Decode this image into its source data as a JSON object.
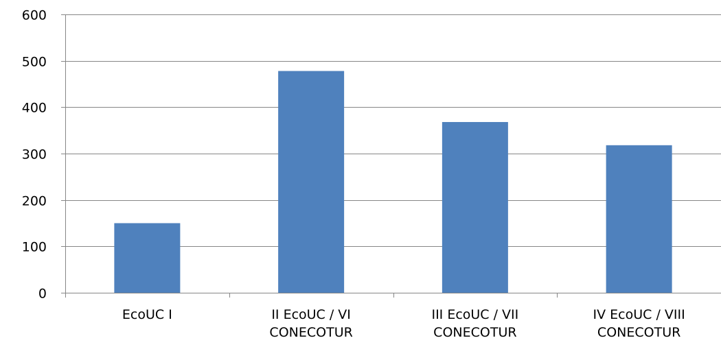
{
  "chart_data": {
    "type": "bar",
    "categories": [
      [
        "EcoUC I"
      ],
      [
        "II EcoUC / VI",
        "CONECOTUR"
      ],
      [
        "III EcoUC  / VII",
        "CONECOTUR"
      ],
      [
        "IV EcoUC  / VIII",
        "CONECOTUR"
      ]
    ],
    "values": [
      150,
      478,
      368,
      318
    ],
    "ylim": [
      0,
      600
    ],
    "yticks": [
      0,
      100,
      200,
      300,
      400,
      500,
      600
    ],
    "grid": true,
    "bar_color": "#4F81BD",
    "grid_color": "#868686",
    "axis_color": "#868686"
  }
}
